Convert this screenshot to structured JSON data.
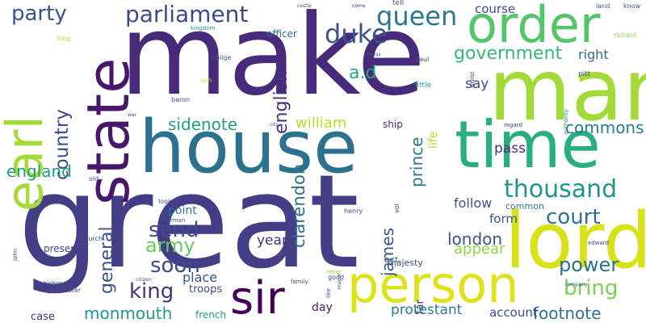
{
  "words": [
    {
      "text": "make",
      "color": "#472a7a",
      "v": false
    },
    {
      "text": "great",
      "color": "#433e85",
      "v": false
    },
    {
      "text": "house",
      "color": "#2c728e",
      "v": false
    },
    {
      "text": "man",
      "color": "#a2da37",
      "v": false
    },
    {
      "text": "order",
      "color": "#54c568",
      "v": false
    },
    {
      "text": "time",
      "color": "#28ae80",
      "v": false
    },
    {
      "text": "lord",
      "color": "#d8e219",
      "v": false
    },
    {
      "text": "person",
      "color": "#dde318",
      "v": false
    },
    {
      "text": "sir",
      "color": "#440154",
      "v": false
    },
    {
      "text": "state",
      "color": "#481769",
      "v": true
    },
    {
      "text": "earl",
      "color": "#a5db36",
      "v": true
    },
    {
      "text": "party",
      "color": "#3b528b",
      "v": false
    },
    {
      "text": "parliament",
      "color": "#3e4989",
      "v": false
    },
    {
      "text": "duke",
      "color": "#3b528b",
      "v": false
    },
    {
      "text": "queen",
      "color": "#2a788e",
      "v": false
    },
    {
      "text": "government",
      "color": "#35b779",
      "v": false
    },
    {
      "text": "course",
      "color": "#3e4a89",
      "v": false
    },
    {
      "text": "country",
      "color": "#3e4a89",
      "v": true
    },
    {
      "text": "english",
      "color": "#46327e",
      "v": true
    },
    {
      "text": "a.d",
      "color": "#22a884",
      "v": false
    },
    {
      "text": "right",
      "color": "#31688e",
      "v": false
    },
    {
      "text": "say",
      "color": "#3e4989",
      "v": false
    },
    {
      "text": "thousand",
      "color": "#1f968b",
      "v": false
    },
    {
      "text": "commons",
      "color": "#277f8e",
      "v": false
    },
    {
      "text": "court",
      "color": "#2c728e",
      "v": false
    },
    {
      "text": "sidenote",
      "color": "#1f9e89",
      "v": false
    },
    {
      "text": "william",
      "color": "#b5de2b",
      "v": false
    },
    {
      "text": "ship",
      "color": "#482475",
      "v": false
    },
    {
      "text": "prince",
      "color": "#2a788e",
      "v": true
    },
    {
      "text": "life",
      "color": "#b8de29",
      "v": true
    },
    {
      "text": "pass",
      "color": "#472d7b",
      "v": false
    },
    {
      "text": "england",
      "color": "#1f9e89",
      "v": false
    },
    {
      "text": "general",
      "color": "#3b528b",
      "v": true
    },
    {
      "text": "send",
      "color": "#3e4a89",
      "v": false
    },
    {
      "text": "clarendon",
      "color": "#2d708e",
      "v": true
    },
    {
      "text": "follow",
      "color": "#3b528b",
      "v": false
    },
    {
      "text": "form",
      "color": "#3b528b",
      "v": false
    },
    {
      "text": "army",
      "color": "#65cb5e",
      "v": false
    },
    {
      "text": "point",
      "color": "#287c8e",
      "v": false
    },
    {
      "text": "soon",
      "color": "#3e4989",
      "v": false
    },
    {
      "text": "year",
      "color": "#46337e",
      "v": false
    },
    {
      "text": "london",
      "color": "#3b528b",
      "v": false
    },
    {
      "text": "appear",
      "color": "#8fd744",
      "v": false
    },
    {
      "text": "james",
      "color": "#39568c",
      "v": true
    },
    {
      "text": "power",
      "color": "#2d708e",
      "v": false
    },
    {
      "text": "king",
      "color": "#46337e",
      "v": false
    },
    {
      "text": "bring",
      "color": "#7ad151",
      "v": false
    },
    {
      "text": "place",
      "color": "#3a548c",
      "v": false
    },
    {
      "text": "present",
      "color": "#3e4a89",
      "v": false
    },
    {
      "text": "act",
      "color": "#31688e",
      "v": false
    },
    {
      "text": "majesty",
      "color": "#3b528b",
      "v": false
    },
    {
      "text": "troops",
      "color": "#3e4a89",
      "v": false
    },
    {
      "text": "monmouth",
      "color": "#1f968b",
      "v": false
    },
    {
      "text": "footnote",
      "color": "#2c728e",
      "v": false
    },
    {
      "text": "protestant",
      "color": "#277f8e",
      "v": false
    },
    {
      "text": "account",
      "color": "#3e4a89",
      "v": false
    },
    {
      "text": "case",
      "color": "#46327e",
      "v": false
    },
    {
      "text": "french",
      "color": "#1f9e89",
      "v": false
    },
    {
      "text": "day",
      "color": "#48186a",
      "v": false
    },
    {
      "text": "far",
      "color": "#433e85",
      "v": true
    },
    {
      "text": "common",
      "color": "#287c8e",
      "v": false
    },
    {
      "text": "son",
      "color": "#dde318",
      "v": false
    },
    {
      "text": "officer",
      "color": "#2d708e",
      "v": false
    },
    {
      "text": "kingdom",
      "color": "#21918c",
      "v": false
    },
    {
      "text": "castle",
      "color": "#3b528b",
      "v": false
    },
    {
      "text": "tell",
      "color": "#3b528b",
      "v": false
    },
    {
      "text": "come",
      "color": "#472d7b",
      "v": false
    },
    {
      "text": "long",
      "color": "#addc30",
      "v": false
    },
    {
      "text": "oblige",
      "color": "#3b528b",
      "v": false
    },
    {
      "text": "baron",
      "color": "#3e4a89",
      "v": false
    },
    {
      "text": "paul",
      "color": "#3e4a89",
      "v": false
    },
    {
      "text": "little",
      "color": "#22a884",
      "v": false
    },
    {
      "text": "land",
      "color": "#3b528b",
      "v": false
    },
    {
      "text": "know",
      "color": "#3b528b",
      "v": false
    },
    {
      "text": "richard",
      "color": "#90d743",
      "v": false
    },
    {
      "text": "pitt",
      "color": "#3b528b",
      "v": false
    },
    {
      "text": "whilst",
      "color": "#3e4a89",
      "v": true
    },
    {
      "text": "city",
      "color": "#3b528b",
      "v": false
    },
    {
      "text": "regard",
      "color": "#3e4a89",
      "v": false
    },
    {
      "text": "authority",
      "color": "#21918c",
      "v": true
    },
    {
      "text": "old",
      "color": "#3e4a89",
      "v": false
    },
    {
      "text": "look",
      "color": "#3b528b",
      "v": false
    },
    {
      "text": "alderman",
      "color": "#3b528b",
      "v": false
    },
    {
      "text": "henry",
      "color": "#3e4a89",
      "v": false
    },
    {
      "text": "vol",
      "color": "#3e4a89",
      "v": true
    },
    {
      "text": "church",
      "color": "#3b528b",
      "v": false
    },
    {
      "text": "edward",
      "color": "#3e4a89",
      "v": false
    },
    {
      "text": "good",
      "color": "#3b528b",
      "v": false
    },
    {
      "text": "letter",
      "color": "#a5db36",
      "v": false
    },
    {
      "text": "bishop",
      "color": "#3b528b",
      "v": false
    },
    {
      "text": "gloucester",
      "color": "#3e4a89",
      "v": false
    },
    {
      "text": "citizen",
      "color": "#3b528b",
      "v": false
    },
    {
      "text": "family",
      "color": "#3e4a89",
      "v": false
    },
    {
      "text": "like",
      "color": "#3b528b",
      "v": true
    },
    {
      "text": "mayor",
      "color": "#3e4a89",
      "v": true
    },
    {
      "text": "company",
      "color": "#3b528b",
      "v": false
    },
    {
      "text": "john",
      "color": "#3e4a89",
      "v": true
    },
    {
      "text": "war",
      "color": "#3e4a89",
      "v": false
    },
    {
      "text": "george",
      "color": "#3b528b",
      "v": false
    }
  ]
}
